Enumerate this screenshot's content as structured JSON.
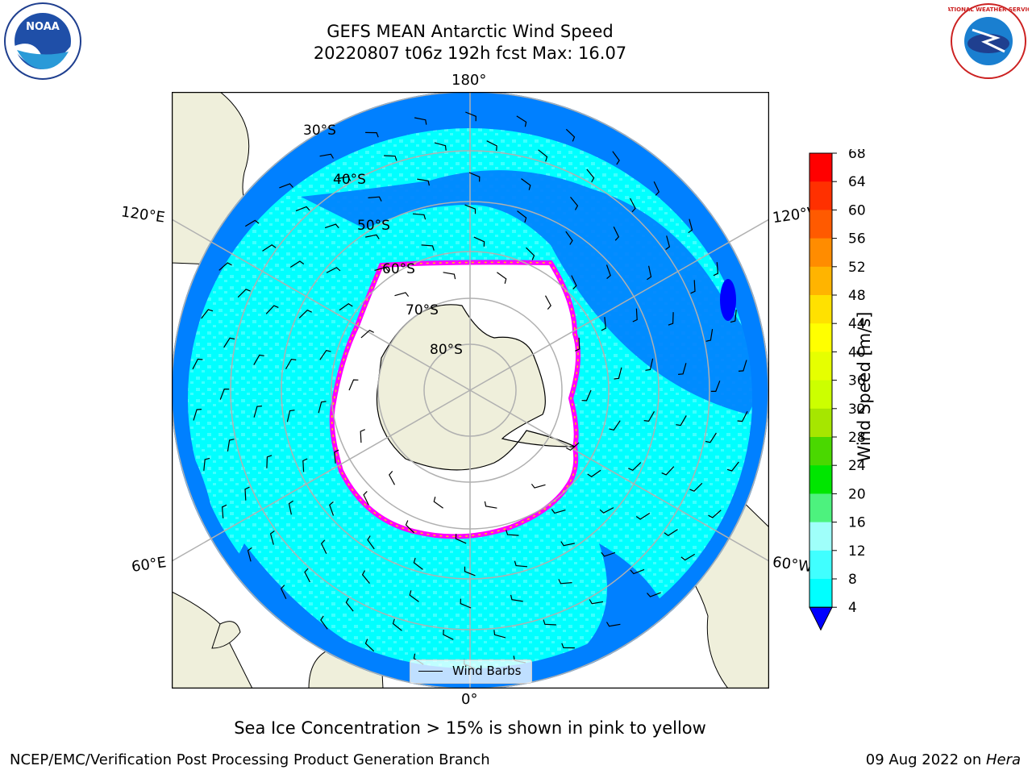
{
  "title": {
    "line1": "GEFS MEAN Antarctic Wind Speed",
    "line2": "20220807 t06z 192h fcst   Max: 16.07"
  },
  "map": {
    "projection": "south-polar-stereographic",
    "longitude_labels": {
      "top": "180°",
      "bottom": "0°",
      "upper_left": "120°E",
      "upper_right": "120°W",
      "lower_left": "60°E",
      "lower_right": "60°W"
    },
    "latitude_labels": [
      "30°S",
      "40°S",
      "50°S",
      "60°S",
      "70°S",
      "80°S"
    ],
    "colors": {
      "land": "#efefdb",
      "ocean_4_8": "#0080ff",
      "ocean_8_12": "#00ffff",
      "ocean_12_16": "#40ffff",
      "ice_edge_pink": "#ff00ff",
      "ice_edge_yellow": "#ffd000",
      "grid": "#b0b0b0"
    }
  },
  "legend": {
    "wind_barbs_label": "Wind Barbs"
  },
  "colorbar": {
    "label": "Wind Speed [m/s]",
    "ticks": [
      "4",
      "8",
      "12",
      "16",
      "20",
      "24",
      "28",
      "32",
      "36",
      "40",
      "44",
      "48",
      "52",
      "56",
      "60",
      "64",
      "68"
    ],
    "colors": [
      "#0080ff",
      "#00ffff",
      "#40ffff",
      "#9ffffa",
      "#4df27e",
      "#00e600",
      "#4ad800",
      "#a6e600",
      "#ccff00",
      "#e6ff00",
      "#ffff00",
      "#ffe100",
      "#ffb400",
      "#ff8c00",
      "#ff5a00",
      "#ff3000",
      "#ff0000"
    ],
    "extend_low_color": "#0000ff"
  },
  "caption": "Sea Ice Concentration > 15% is shown in pink to yellow",
  "footer": {
    "left": "NCEP/EMC/Verification Post Processing Product Generation Branch",
    "right_prefix": "09 Aug 2022 on ",
    "right_host": "Hera"
  },
  "logos": {
    "left": "NOAA",
    "right": "NATIONAL WEATHER SERVICE"
  }
}
